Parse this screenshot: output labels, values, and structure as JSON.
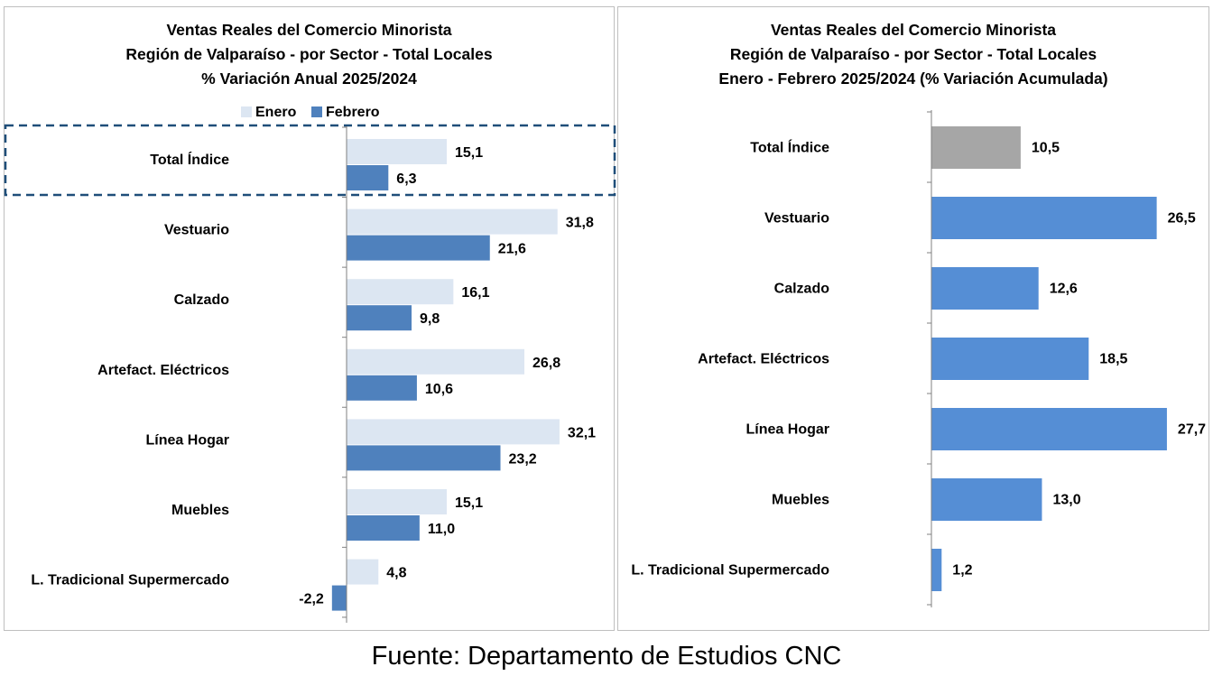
{
  "source": "Fuente: Departamento de Estudios CNC",
  "chart_data": [
    {
      "type": "bar",
      "orientation": "horizontal",
      "title_lines": [
        "Ventas Reales del Comercio Minorista",
        "Región de Valparaíso - por Sector - Total Locales",
        "% Variación Anual 2025/2024"
      ],
      "categories": [
        "Total Índice",
        "Vestuario",
        "Calzado",
        "Artefact. Eléctricos",
        "Línea Hogar",
        "Muebles",
        "L. Tradicional Supermercado"
      ],
      "series": [
        {
          "name": "Enero",
          "values": [
            15.1,
            31.8,
            16.1,
            26.8,
            32.1,
            15.1,
            4.8
          ],
          "labels": [
            "15,1",
            "31,8",
            "16,1",
            "26,8",
            "32,1",
            "15,1",
            "4,8"
          ],
          "color": "#dce6f2"
        },
        {
          "name": "Febrero",
          "values": [
            6.3,
            21.6,
            9.8,
            10.6,
            23.2,
            11.0,
            -2.2
          ],
          "labels": [
            "6,3",
            "21,6",
            "9,8",
            "10,6",
            "23,2",
            "11,0",
            "-2,2"
          ],
          "color": "#4f81bd"
        }
      ],
      "legend_position": "top",
      "highlight": "Total Índice",
      "grid": false
    },
    {
      "type": "bar",
      "orientation": "horizontal",
      "title_lines": [
        "Ventas Reales del Comercio Minorista",
        "Región de Valparaíso - por Sector  - Total Locales",
        "Enero - Febrero 2025/2024 (% Variación Acumulada)"
      ],
      "categories": [
        "Total Índice",
        "Vestuario",
        "Calzado",
        "Artefact. Eléctricos",
        "Línea Hogar",
        "Muebles",
        "L. Tradicional Supermercado"
      ],
      "values": [
        10.5,
        26.5,
        12.6,
        18.5,
        27.7,
        13.0,
        1.2
      ],
      "labels": [
        "10,5",
        "26,5",
        "12,6",
        "18,5",
        "27,7",
        "13,0",
        "1,2"
      ],
      "colors": [
        "#a6a6a6",
        "#558ed5",
        "#558ed5",
        "#558ed5",
        "#558ed5",
        "#558ed5",
        "#558ed5"
      ],
      "grid": false
    }
  ]
}
